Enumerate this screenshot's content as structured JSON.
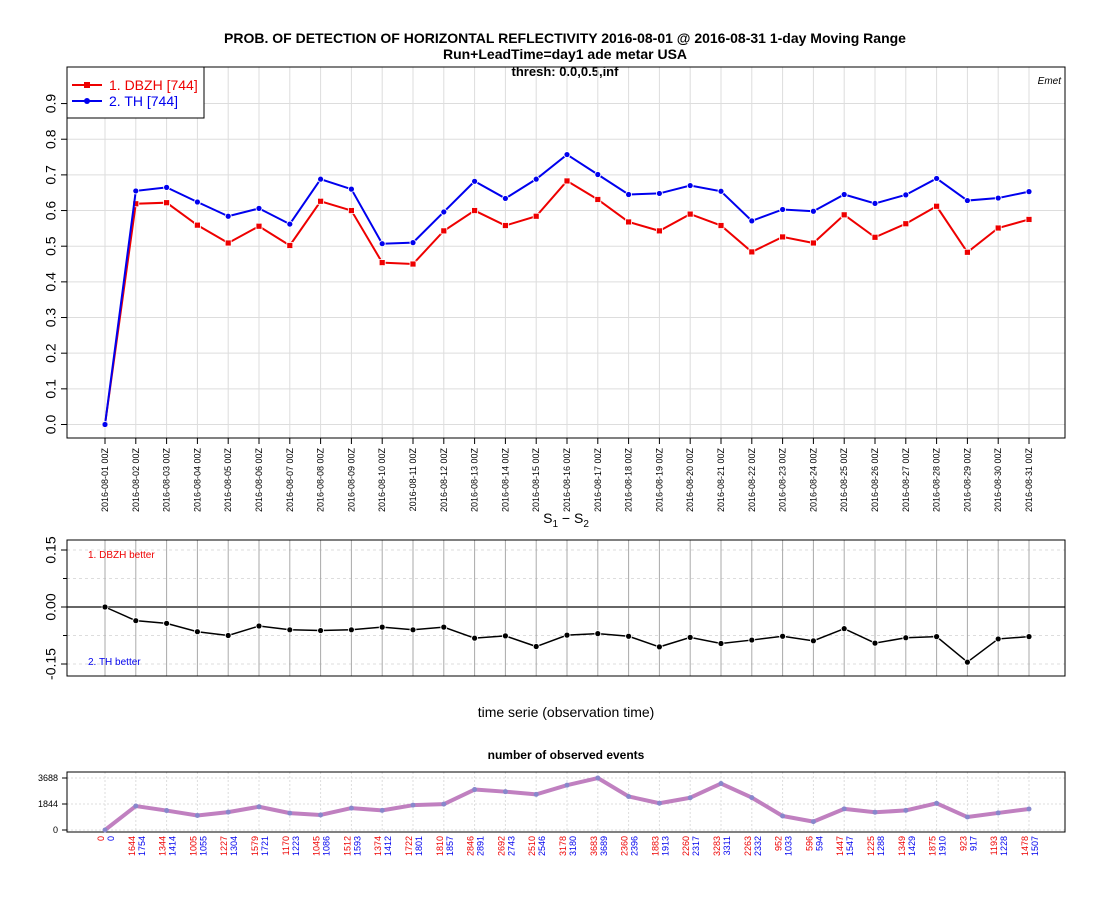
{
  "title": {
    "line1": "PROB. OF DETECTION OF HORIZONTAL REFLECTIVITY 2016-08-01 @ 2016-08-31 1-day Moving Range",
    "line2": "Run+LeadTime=day1 ade metar USA",
    "line3": "thresh: 0.0,0.5,inf"
  },
  "corner_label": "Emet",
  "colors": {
    "series1": "#ee0000",
    "series2": "#0000ee",
    "diff": "#000000",
    "obs": "#c080c0"
  },
  "chart_data": [
    {
      "type": "line",
      "ylim": [
        0,
        1
      ],
      "yticks": [
        "0.0",
        "0.1",
        "0.2",
        "0.3",
        "0.4",
        "0.5",
        "0.6",
        "0.7",
        "0.8",
        "0.9"
      ],
      "legend_position": "top-left",
      "grid": true,
      "x": [
        "2016-08-01 00Z",
        "2016-08-02 00Z",
        "2016-08-03 00Z",
        "2016-08-04 00Z",
        "2016-08-05 00Z",
        "2016-08-06 00Z",
        "2016-08-07 00Z",
        "2016-08-08 00Z",
        "2016-08-09 00Z",
        "2016-08-10 00Z",
        "2016-08-11 00Z",
        "2016-08-12 00Z",
        "2016-08-13 00Z",
        "2016-08-14 00Z",
        "2016-08-15 00Z",
        "2016-08-16 00Z",
        "2016-08-17 00Z",
        "2016-08-18 00Z",
        "2016-08-19 00Z",
        "2016-08-20 00Z",
        "2016-08-21 00Z",
        "2016-08-22 00Z",
        "2016-08-23 00Z",
        "2016-08-24 00Z",
        "2016-08-25 00Z",
        "2016-08-26 00Z",
        "2016-08-27 00Z",
        "2016-08-28 00Z",
        "2016-08-29 00Z",
        "2016-08-30 00Z",
        "2016-08-31 00Z"
      ],
      "series": [
        {
          "name": "1. DBZH [744]",
          "values": [
            0.0,
            0.619,
            0.622,
            0.559,
            0.509,
            0.556,
            0.502,
            0.626,
            0.6,
            0.454,
            0.45,
            0.543,
            0.6,
            0.558,
            0.584,
            0.683,
            0.631,
            0.568,
            0.543,
            0.59,
            0.558,
            0.484,
            0.526,
            0.509,
            0.588,
            0.525,
            0.563,
            0.612,
            0.483,
            0.551,
            0.575
          ]
        },
        {
          "name": "2. TH [744]",
          "values": [
            0.0,
            0.655,
            0.665,
            0.624,
            0.584,
            0.606,
            0.562,
            0.688,
            0.66,
            0.507,
            0.51,
            0.596,
            0.682,
            0.634,
            0.688,
            0.757,
            0.701,
            0.645,
            0.648,
            0.67,
            0.654,
            0.571,
            0.603,
            0.598,
            0.645,
            0.62,
            0.644,
            0.69,
            0.628,
            0.635,
            0.653
          ]
        }
      ]
    },
    {
      "type": "line",
      "title": "S1 - S2",
      "xlabel": "time serie (observation time)",
      "ylim": [
        -0.17,
        0.17
      ],
      "yticks": [
        "0.15",
        "0.00",
        "-0.15"
      ],
      "annotations": [
        "1. DBZH  better",
        "2. TH  better"
      ],
      "values": [
        0.0,
        -0.036,
        -0.043,
        -0.065,
        -0.075,
        -0.05,
        -0.06,
        -0.062,
        -0.06,
        -0.053,
        -0.06,
        -0.053,
        -0.082,
        -0.076,
        -0.104,
        -0.074,
        -0.07,
        -0.077,
        -0.105,
        -0.08,
        -0.096,
        -0.087,
        -0.077,
        -0.089,
        -0.057,
        -0.095,
        -0.081,
        -0.078,
        -0.145,
        -0.084,
        -0.078
      ]
    },
    {
      "type": "line",
      "title": "number of observed events",
      "ylim": [
        0,
        3688
      ],
      "yticks": [
        "0",
        "1844",
        "3688"
      ],
      "series": [
        {
          "name": "1. DBZH",
          "counts": [
            0,
            1644,
            1344,
            1005,
            1227,
            1579,
            1170,
            1045,
            1512,
            1374,
            1722,
            1810,
            2846,
            2692,
            2510,
            3178,
            3683,
            2360,
            1883,
            2260,
            3283,
            2263,
            952,
            596,
            1447,
            1225,
            1349,
            1875,
            923,
            1193,
            1478
          ]
        },
        {
          "name": "2. TH",
          "counts": [
            0,
            1754,
            1414,
            1055,
            1304,
            1721,
            1223,
            1086,
            1593,
            1412,
            1801,
            1857,
            2891,
            2743,
            2546,
            3180,
            3689,
            2396,
            1913,
            2317,
            3311,
            2332,
            1033,
            594,
            1547,
            1288,
            1429,
            1910,
            917,
            1228,
            1507
          ]
        }
      ]
    }
  ]
}
